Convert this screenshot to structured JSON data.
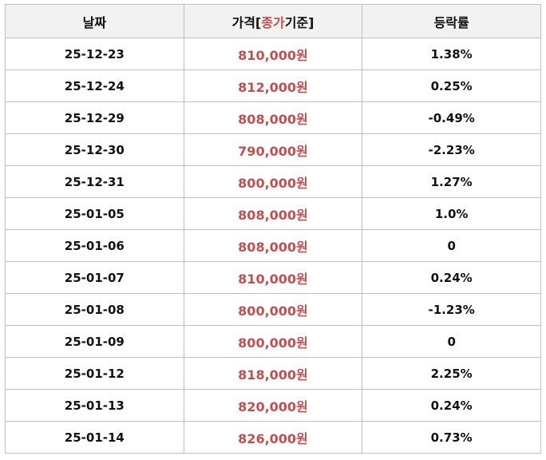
{
  "table": {
    "header": [
      "날짜",
      [
        "가격[",
        "종가",
        "기준]"
      ],
      "등락률"
    ],
    "rows": [
      [
        "25-12-23",
        "810,000원",
        "1.38%"
      ],
      [
        "25-12-24",
        "812,000원",
        "0.25%"
      ],
      [
        "25-12-29",
        "808,000원",
        "-0.49%"
      ],
      [
        "25-12-30",
        "790,000원",
        "-2.23%"
      ],
      [
        "25-12-31",
        "800,000원",
        "1.27%"
      ],
      [
        "25-01-05",
        "808,000원",
        "1.0%"
      ],
      [
        "25-01-06",
        "808,000원",
        "0"
      ],
      [
        "25-01-07",
        "810,000원",
        "0.24%"
      ],
      [
        "25-01-08",
        "800,000원",
        "-1.23%"
      ],
      [
        "25-01-09",
        "800,000원",
        "0"
      ],
      [
        "25-01-12",
        "818,000원",
        "2.25%"
      ],
      [
        "25-01-13",
        "820,000원",
        "0.24%"
      ],
      [
        "25-01-14",
        "826,000원",
        "0.73%"
      ]
    ]
  }
}
